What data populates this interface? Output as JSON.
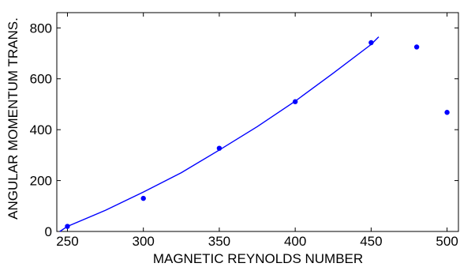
{
  "chart_data": {
    "type": "scatter",
    "title": "",
    "xlabel": "MAGNETIC REYNOLDS NUMBER",
    "ylabel": "ANGULAR MOMENTUM TRANS.",
    "xlim": [
      243,
      508
    ],
    "ylim": [
      0,
      860
    ],
    "xticks": [
      250,
      300,
      350,
      400,
      450,
      500
    ],
    "yticks": [
      0,
      200,
      400,
      600,
      800
    ],
    "grid": false,
    "legend": "none",
    "series": [
      {
        "kind": "points",
        "color": "#0000ff",
        "x": [
          250,
          300,
          350,
          400,
          450,
          480,
          500
        ],
        "y": [
          20,
          130,
          327,
          510,
          742,
          725,
          468
        ]
      },
      {
        "kind": "fit-line",
        "color": "#0000ff",
        "x": [
          245,
          250,
          275,
          300,
          325,
          350,
          375,
          400,
          425,
          450,
          455
        ],
        "y": [
          0,
          20,
          83,
          155,
          231,
          320,
          412,
          512,
          622,
          735,
          765
        ]
      }
    ]
  }
}
